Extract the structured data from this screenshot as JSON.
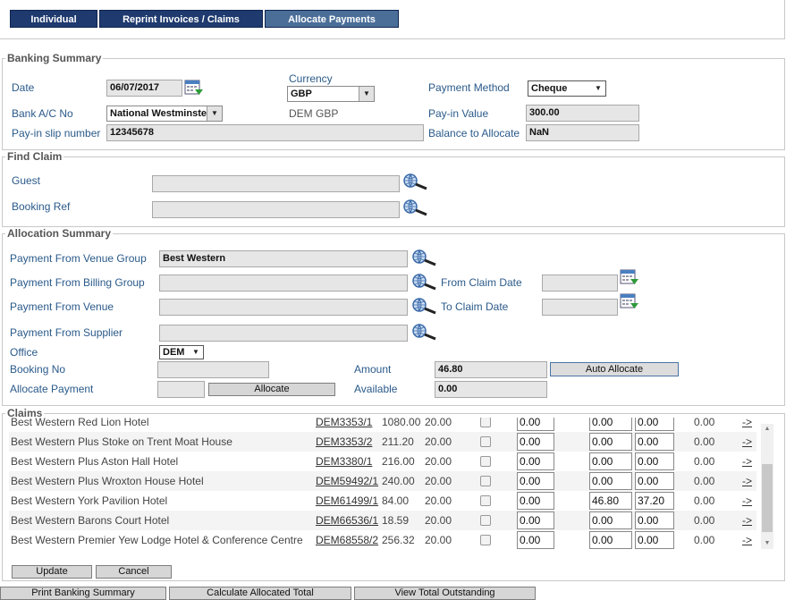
{
  "tabs": [
    "Individual",
    "Reprint Invoices / Claims",
    "Allocate Payments"
  ],
  "banking_summary": {
    "legend": "Banking Summary",
    "date_label": "Date",
    "date_value": "06/07/2017",
    "currency_label": "Currency",
    "currency_value": "GBP",
    "payment_method_label": "Payment Method",
    "payment_method_value": "Cheque",
    "bank_label": "Bank A/C No",
    "bank_value": "National Westminster",
    "dem_gbp": "DEM GBP",
    "payin_value_label": "Pay-in Value",
    "payin_value": "300.00",
    "payin_slip_label": "Pay-in slip number",
    "payin_slip_value": "12345678",
    "balance_label": "Balance to Allocate",
    "balance_value": "NaN"
  },
  "find_claim": {
    "legend": "Find Claim",
    "guest_label": "Guest",
    "guest_value": "",
    "booking_ref_label": "Booking Ref",
    "booking_ref_value": ""
  },
  "allocation_summary": {
    "legend": "Allocation Summary",
    "venue_group_label": "Payment From Venue Group",
    "venue_group_value": "Best Western",
    "billing_group_label": "Payment From Billing Group",
    "billing_group_value": "",
    "from_claim_date_label": "From Claim Date",
    "from_claim_date_value": "",
    "venue_label": "Payment From Venue",
    "venue_value": "",
    "to_claim_date_label": "To Claim Date",
    "to_claim_date_value": "",
    "supplier_label": "Payment From Supplier",
    "supplier_value": "",
    "office_label": "Office",
    "office_value": "DEM",
    "booking_no_label": "Booking No",
    "booking_no_value": "",
    "amount_label": "Amount",
    "amount_value": "46.80",
    "auto_allocate": "Auto Allocate",
    "allocate_payment_label": "Allocate Payment",
    "allocate_payment_value": "",
    "allocate_button": "Allocate",
    "available_label": "Available",
    "available_value": "0.00"
  },
  "claims": {
    "legend": "Claims",
    "partial_row": {
      "name": "Best Western Red Lion Hotel",
      "ref": "DEM3353/1",
      "total": "1080.00",
      "fee": "20.00",
      "a": "0.00",
      "b": "0.00",
      "c": "0.00",
      "d": "0.00",
      "go": "->"
    },
    "rows": [
      {
        "name": "Best Western Plus Stoke on Trent Moat House",
        "ref": "DEM3353/2",
        "total": "211.20",
        "fee": "20.00",
        "a": "0.00",
        "b": "0.00",
        "c": "0.00",
        "d": "0.00",
        "go": "->"
      },
      {
        "name": "Best Western Plus Aston Hall Hotel",
        "ref": "DEM3380/1",
        "total": "216.00",
        "fee": "20.00",
        "a": "0.00",
        "b": "0.00",
        "c": "0.00",
        "d": "0.00",
        "go": "->"
      },
      {
        "name": "Best Western Plus Wroxton House Hotel",
        "ref": "DEM59492/1",
        "total": "240.00",
        "fee": "20.00",
        "a": "0.00",
        "b": "0.00",
        "c": "0.00",
        "d": "0.00",
        "go": "->"
      },
      {
        "name": "Best Western York Pavilion Hotel",
        "ref": "DEM61499/1",
        "total": "84.00",
        "fee": "20.00",
        "a": "0.00",
        "b": "46.80",
        "c": "37.20",
        "d": "0.00",
        "go": "->"
      },
      {
        "name": "Best Western Barons Court Hotel",
        "ref": "DEM66536/1",
        "total": "18.59",
        "fee": "20.00",
        "a": "0.00",
        "b": "0.00",
        "c": "0.00",
        "d": "0.00",
        "go": "->"
      },
      {
        "name": "Best Western Premier Yew Lodge Hotel & Conference Centre",
        "ref": "DEM68558/2",
        "total": "256.32",
        "fee": "20.00",
        "a": "0.00",
        "b": "0.00",
        "c": "0.00",
        "d": "0.00",
        "go": "->"
      }
    ]
  },
  "buttons": {
    "update": "Update",
    "cancel": "Cancel",
    "print_banking_summary": "Print Banking Summary",
    "calculate_allocated_total": "Calculate Allocated Total",
    "view_total_outstanding": "View Total Outstanding"
  }
}
